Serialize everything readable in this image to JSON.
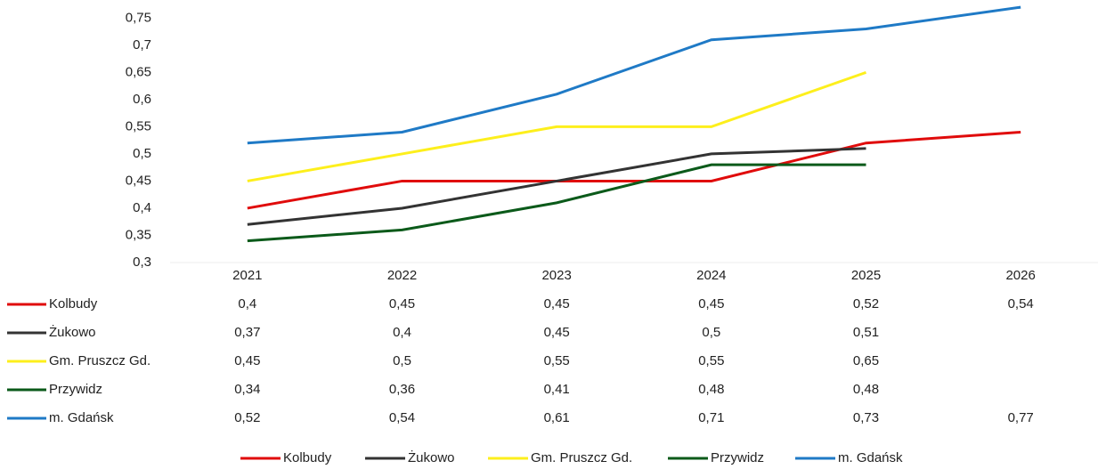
{
  "chart_data": {
    "type": "line",
    "categories": [
      "2021",
      "2022",
      "2023",
      "2024",
      "2025",
      "2026"
    ],
    "series": [
      {
        "name": "Kolbudy",
        "color": "#e00b0b",
        "values": [
          0.4,
          0.45,
          0.45,
          0.45,
          0.52,
          0.54
        ],
        "value_labels": [
          "0,4",
          "0,45",
          "0,45",
          "0,45",
          "0,52",
          "0,54"
        ]
      },
      {
        "name": "Żukowo",
        "color": "#333333",
        "values": [
          0.37,
          0.4,
          0.45,
          0.5,
          0.51,
          null
        ],
        "value_labels": [
          "0,37",
          "0,4",
          "0,45",
          "0,5",
          "0,51",
          null
        ]
      },
      {
        "name": "Gm. Pruszcz Gd.",
        "color": "#fdef1c",
        "values": [
          0.45,
          0.5,
          0.55,
          0.55,
          0.65,
          null
        ],
        "value_labels": [
          "0,45",
          "0,5",
          "0,55",
          "0,55",
          "0,65",
          null
        ]
      },
      {
        "name": "Przywidz",
        "color": "#0b5a1a",
        "values": [
          0.34,
          0.36,
          0.41,
          0.48,
          0.48,
          null
        ],
        "value_labels": [
          "0,34",
          "0,36",
          "0,41",
          "0,48",
          "0,48",
          null
        ]
      },
      {
        "name": "m. Gdańsk",
        "color": "#1f7ac6",
        "values": [
          0.52,
          0.54,
          0.61,
          0.71,
          0.73,
          0.77
        ],
        "value_labels": [
          "0,52",
          "0,54",
          "0,61",
          "0,71",
          "0,73",
          "0,77"
        ]
      }
    ],
    "ylim": [
      0.3,
      0.78
    ],
    "yticks": [
      {
        "value": 0.3,
        "label": "0,3"
      },
      {
        "value": 0.35,
        "label": "0,35"
      },
      {
        "value": 0.4,
        "label": "0,4"
      },
      {
        "value": 0.45,
        "label": "0,45"
      },
      {
        "value": 0.5,
        "label": "0,5"
      },
      {
        "value": 0.55,
        "label": "0,55"
      },
      {
        "value": 0.6,
        "label": "0,6"
      },
      {
        "value": 0.65,
        "label": "0,65"
      },
      {
        "value": 0.7,
        "label": "0,7"
      },
      {
        "value": 0.75,
        "label": "0,75"
      }
    ],
    "grid": false
  }
}
